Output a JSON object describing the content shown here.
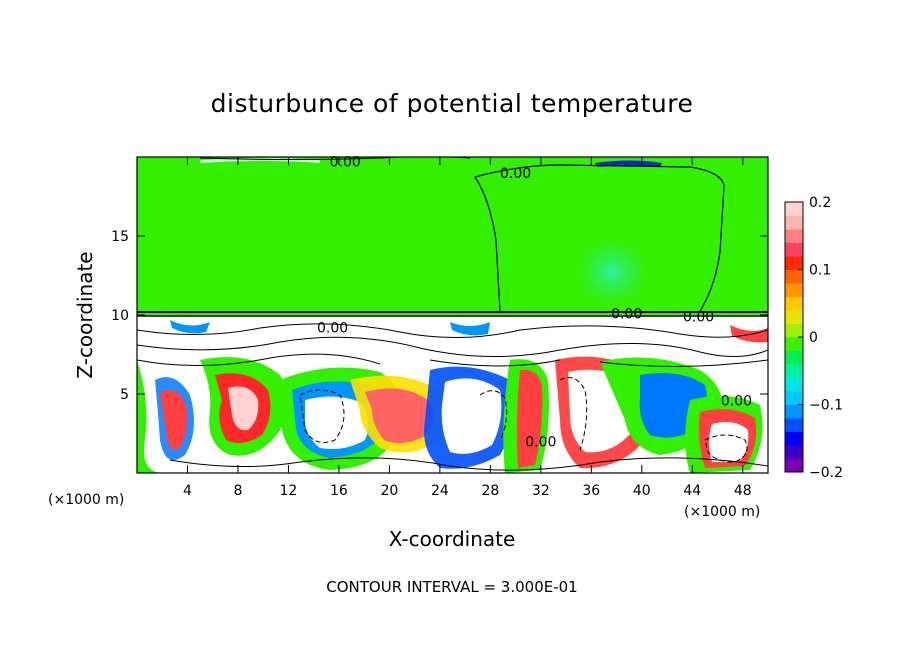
{
  "chart_data": {
    "type": "heatmap",
    "title": "disturbunce of potential temperature",
    "xlabel": "X-coordinate",
    "ylabel": "Z-coordinate",
    "x_unit": "(×1000 m)",
    "y_unit": "(×1000 m)",
    "xlim": [
      0,
      50
    ],
    "ylim": [
      0,
      20
    ],
    "x_ticks": [
      4,
      8,
      12,
      16,
      20,
      24,
      28,
      32,
      36,
      40,
      44,
      48
    ],
    "y_ticks": [
      5,
      10,
      15
    ],
    "colorbar": {
      "range": [
        -0.2,
        0.2
      ],
      "tick_labels": [
        "0.2",
        "0.1",
        "0",
        "−0.1",
        "−0.2"
      ],
      "tick_values": [
        0.2,
        0.1,
        0,
        -0.1,
        -0.2
      ],
      "colors": [
        "#7b00b4",
        "#3c00c8",
        "#0000ff",
        "#0050ff",
        "#0096ff",
        "#00c8ff",
        "#00e6e6",
        "#00f0a0",
        "#00f050",
        "#3cf000",
        "#a0f000",
        "#e6e600",
        "#ffc800",
        "#ff9600",
        "#ff6400",
        "#ff2800",
        "#ff4060",
        "#ff8080",
        "#ffb4b4",
        "#ffd2d2"
      ]
    },
    "contour_labels": [
      {
        "text": "0.00",
        "x": 16.5,
        "z": 19.7
      },
      {
        "text": "0.00",
        "x": 30.0,
        "z": 19.0
      },
      {
        "text": "0.00",
        "x": 38.8,
        "z": 10.1
      },
      {
        "text": "0.00",
        "x": 44.5,
        "z": 9.9
      },
      {
        "text": "0.00",
        "x": 15.5,
        "z": 9.2
      },
      {
        "text": "0.00",
        "x": 47.5,
        "z": 4.6
      },
      {
        "text": "0.00",
        "x": 32.0,
        "z": 2.0
      }
    ],
    "footer": "CONTOUR INTERVAL = 3.000E-01"
  }
}
